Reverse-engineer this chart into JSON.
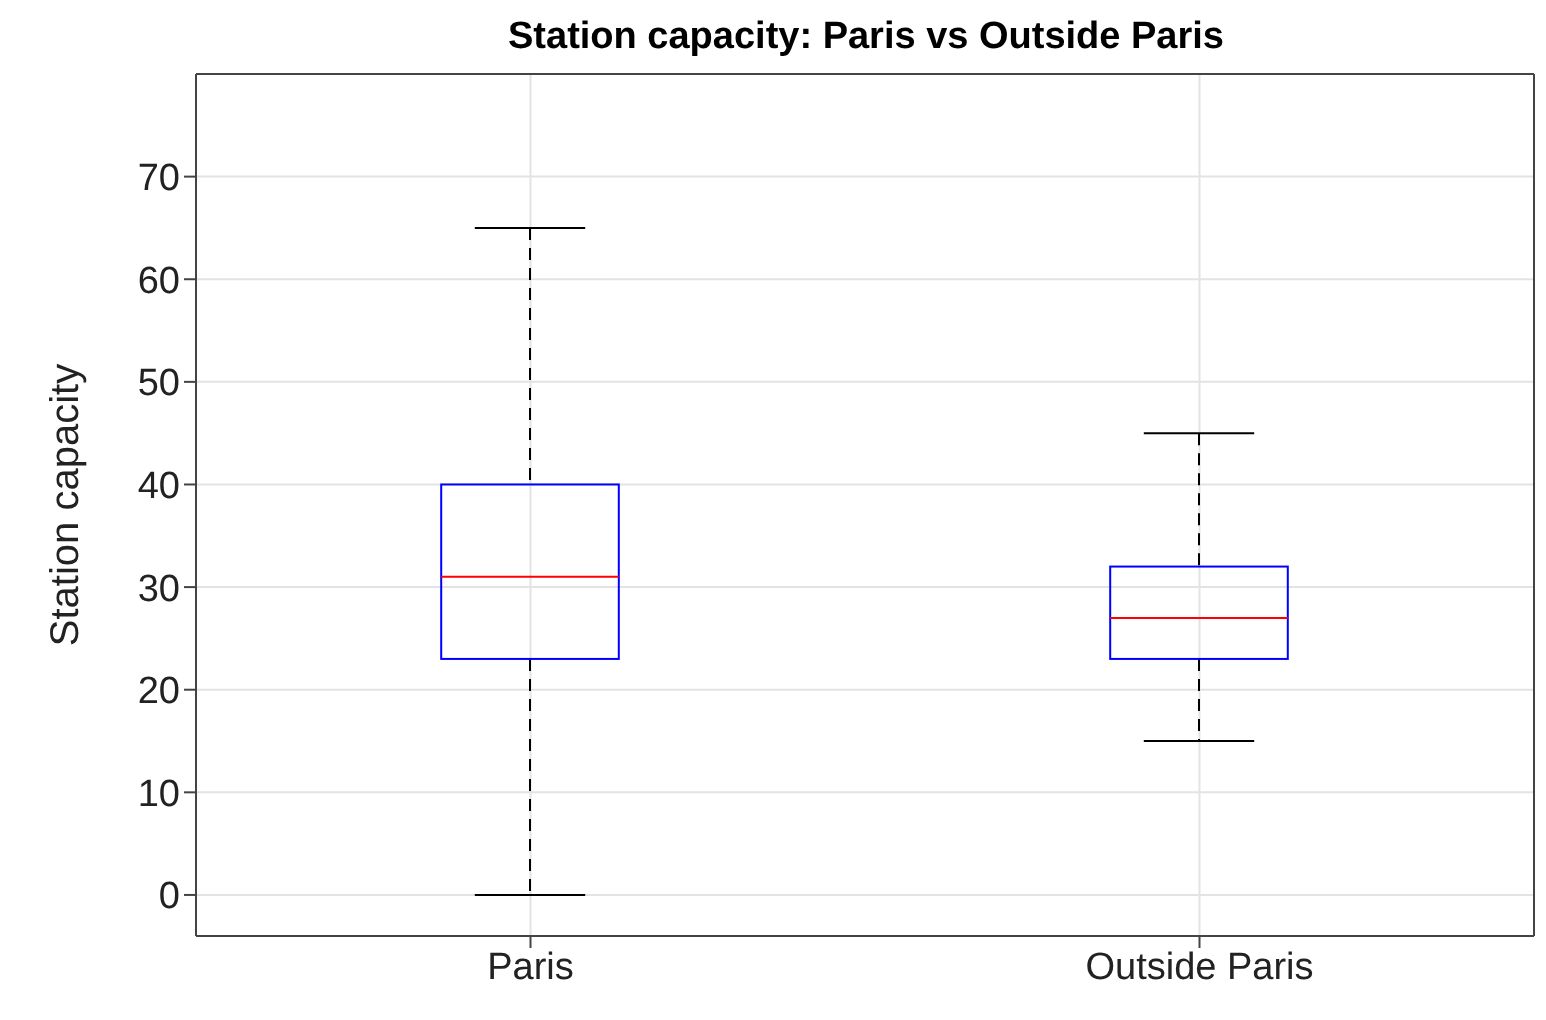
{
  "chart_data": {
    "type": "box",
    "title": "Station capacity: Paris vs Outside Paris",
    "ylabel": "Station capacity",
    "categories": [
      "Paris",
      "Outside Paris"
    ],
    "boxes": [
      {
        "low": 0,
        "q1": 23,
        "median": 31,
        "q3": 40,
        "high": 65
      },
      {
        "low": 15,
        "q1": 23,
        "median": 27,
        "q3": 32,
        "high": 45
      }
    ],
    "ylim": [
      -4,
      80
    ],
    "yticks": [
      0,
      10,
      20,
      30,
      40,
      50,
      60,
      70
    ],
    "grid": true
  }
}
